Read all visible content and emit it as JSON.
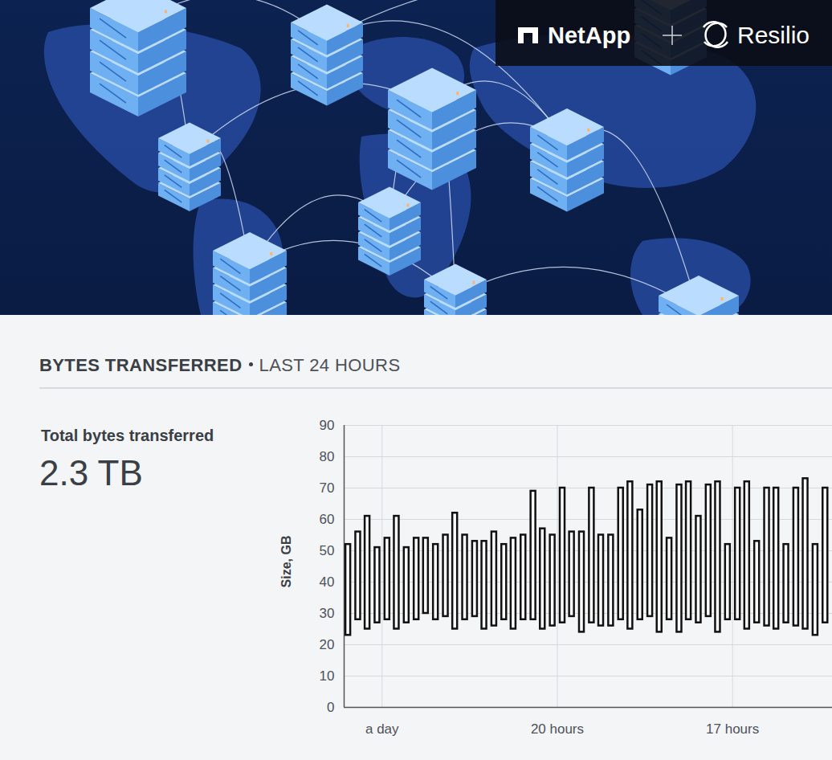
{
  "banner": {
    "logos": [
      "NetApp",
      "Resilio"
    ]
  },
  "summary": {
    "label": "Total bytes transferred",
    "value": "2.3 TB"
  },
  "chart_data": {
    "type": "range_bar",
    "title": "BYTES TRANSFERRED",
    "subtitle": "LAST 24 HOURS",
    "y_label": "Size, GB",
    "x": [
      23.58,
      23.41,
      23.25,
      23.08,
      22.91,
      22.75,
      22.58,
      22.41,
      22.25,
      22.08,
      21.91,
      21.75,
      21.58,
      21.41,
      21.25,
      21.08,
      20.91,
      20.75,
      20.58,
      20.41,
      20.25,
      20.08,
      19.91,
      19.75,
      19.58,
      19.41,
      19.25,
      19.08,
      18.91,
      18.75,
      18.58,
      18.41,
      18.25,
      18.08,
      17.91,
      17.75,
      17.58,
      17.41,
      17.25,
      17.08,
      16.91,
      16.75,
      16.58,
      16.41,
      16.25,
      16.08,
      15.91,
      15.75,
      15.58,
      15.41
    ],
    "low": [
      23,
      28,
      25,
      27,
      28,
      25,
      27,
      28,
      30,
      28,
      29,
      25,
      28,
      29,
      25,
      26,
      28,
      25,
      28,
      28,
      25,
      26,
      27,
      29,
      24,
      27,
      26,
      26,
      28,
      25,
      28,
      29,
      24,
      28,
      24,
      28,
      27,
      29,
      24,
      28,
      28,
      25,
      27,
      26,
      25,
      27,
      26,
      25,
      23,
      27
    ],
    "high": [
      52,
      56,
      61,
      51,
      54,
      61,
      51,
      54,
      54,
      52,
      55,
      62,
      55,
      53,
      53,
      56,
      52,
      54,
      55,
      69,
      57,
      55,
      70,
      56,
      56,
      70,
      55,
      55,
      70,
      72,
      63,
      71,
      72,
      54,
      71,
      72,
      61,
      71,
      72,
      52,
      70,
      72,
      53,
      70,
      70,
      52,
      70,
      73,
      52,
      70
    ],
    "color": "#111111",
    "xlim": [
      23.65,
      15.29
    ],
    "xticks": [
      {
        "value": 23,
        "label": "a day"
      },
      {
        "value": 20,
        "label": "20 hours"
      },
      {
        "value": 17,
        "label": "17 hours"
      }
    ],
    "ylim": [
      0,
      90
    ],
    "yticks": [
      0,
      10,
      20,
      30,
      40,
      50,
      60,
      70,
      80,
      90
    ],
    "grid": true
  }
}
